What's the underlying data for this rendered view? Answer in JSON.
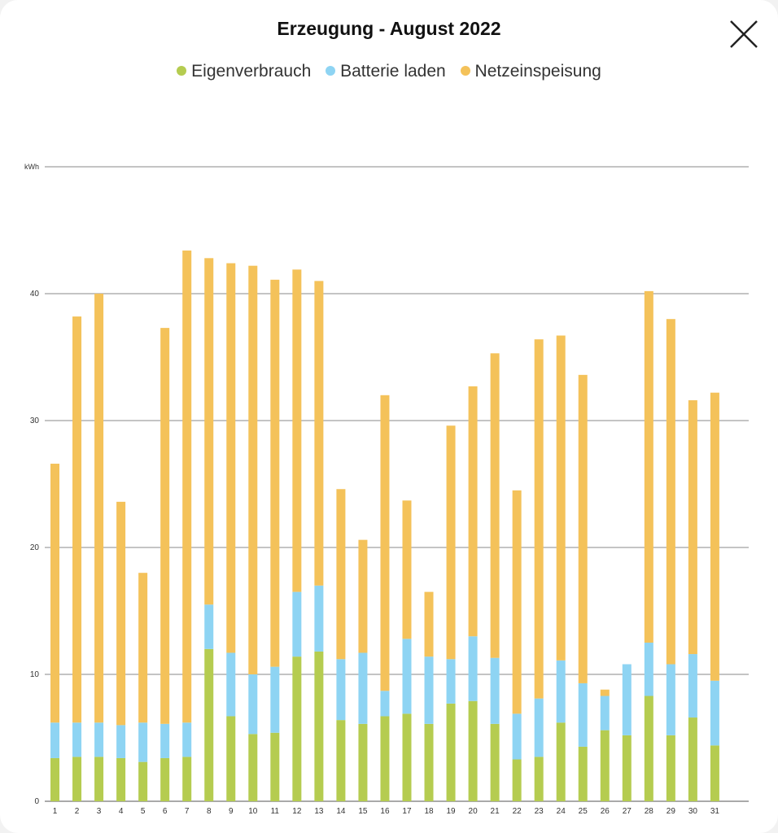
{
  "header": {
    "title": "Erzeugung - August 2022",
    "close_icon": "close-icon"
  },
  "colors": {
    "eigenverbrauch": "#b5cc50",
    "batterie": "#8ed4f3",
    "netz": "#f4c25a",
    "grid": "#8a8a8a"
  },
  "chart_data": {
    "type": "bar",
    "stacked": true,
    "title": "Erzeugung - August 2022",
    "ylabel": "kWh",
    "ylim": [
      0,
      50
    ],
    "yticks": [
      0,
      10,
      20,
      30,
      40
    ],
    "grid": true,
    "legend_position": "top-center",
    "categories": [
      "1",
      "2",
      "3",
      "4",
      "5",
      "6",
      "7",
      "8",
      "9",
      "10",
      "11",
      "12",
      "13",
      "14",
      "15",
      "16",
      "17",
      "18",
      "19",
      "20",
      "21",
      "22",
      "23",
      "24",
      "25",
      "26",
      "27",
      "28",
      "29",
      "30",
      "31"
    ],
    "series": [
      {
        "name": "Eigenverbrauch",
        "values": [
          3.4,
          3.5,
          3.5,
          3.4,
          3.1,
          3.4,
          3.5,
          12.0,
          6.7,
          5.3,
          5.4,
          11.4,
          11.8,
          6.4,
          6.1,
          6.7,
          6.9,
          6.1,
          7.7,
          7.9,
          6.1,
          3.3,
          3.5,
          6.2,
          4.3,
          5.6,
          5.2,
          8.3,
          5.2,
          6.6,
          4.4
        ]
      },
      {
        "name": "Batterie laden",
        "values": [
          2.8,
          2.7,
          2.7,
          2.6,
          3.1,
          2.7,
          2.7,
          3.5,
          5.0,
          4.7,
          5.2,
          5.1,
          5.2,
          4.8,
          5.6,
          2.0,
          5.9,
          5.3,
          3.5,
          5.1,
          5.2,
          3.6,
          4.6,
          4.9,
          5.0,
          2.7,
          5.6,
          4.2,
          5.6,
          5.0,
          5.1
        ]
      },
      {
        "name": "Netzeinspeisung",
        "values": [
          20.4,
          32.0,
          33.8,
          17.6,
          11.8,
          31.2,
          37.2,
          27.3,
          30.7,
          32.2,
          30.5,
          25.4,
          24.0,
          13.4,
          8.9,
          23.3,
          10.9,
          5.1,
          18.4,
          19.7,
          24.0,
          17.6,
          28.3,
          25.6,
          24.3,
          0.5,
          0.0,
          27.7,
          27.2,
          20.0,
          22.7
        ]
      }
    ]
  }
}
